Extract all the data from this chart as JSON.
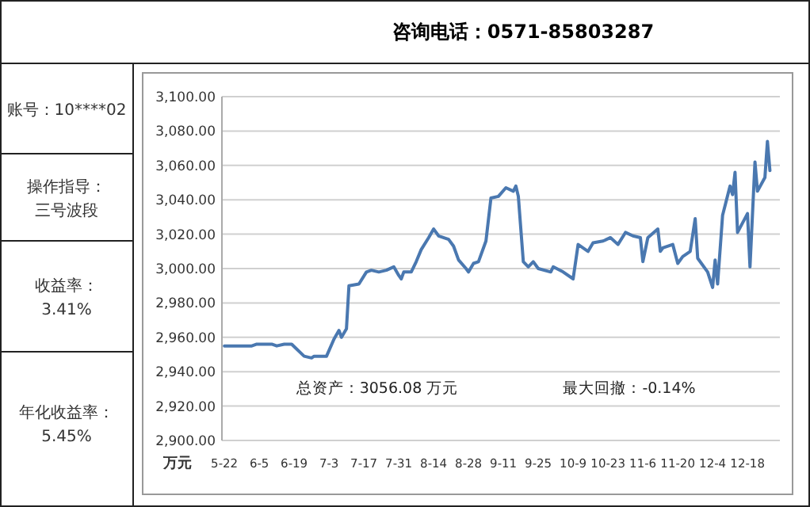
{
  "chart_data": {
    "type": "line",
    "title": "咨询电话：0571-85803287",
    "ylabel": "万元",
    "annotations": [
      "账号：10****02",
      "操作指导：",
      "三号波段",
      "收益率：",
      "3.41%",
      "年化收益率：",
      "5.45%",
      "总资产：3056.08 万元",
      "最大回撤：-0.14%"
    ],
    "xlim": [
      "--05-21",
      "--12-31"
    ],
    "xticks": [
      {
        "value": "--05-22",
        "label": "5-22"
      },
      {
        "value": "--06-05",
        "label": "6-5"
      },
      {
        "value": "--06-19",
        "label": "6-19"
      },
      {
        "value": "--07-03",
        "label": "7-3"
      },
      {
        "value": "--07-17",
        "label": "7-17"
      },
      {
        "value": "--07-31",
        "label": "7-31"
      },
      {
        "value": "--08-14",
        "label": "8-14"
      },
      {
        "value": "--08-28",
        "label": "8-28"
      },
      {
        "value": "--09-11",
        "label": "9-11"
      },
      {
        "value": "--09-25",
        "label": "9-25"
      },
      {
        "value": "--10-09",
        "label": "10-9"
      },
      {
        "value": "--10-23",
        "label": "10-23"
      },
      {
        "value": "--11-06",
        "label": "11-6"
      },
      {
        "value": "--11-20",
        "label": "11-20"
      },
      {
        "value": "--12-04",
        "label": "12-4"
      },
      {
        "value": "--12-18",
        "label": "12-18"
      }
    ],
    "ylim": [
      2900,
      3100
    ],
    "yticks": [
      {
        "value": 2900,
        "label": "2,900.00"
      },
      {
        "value": 2920,
        "label": "2,920.00"
      },
      {
        "value": 2940,
        "label": "2,940.00"
      },
      {
        "value": 2960,
        "label": "2,960.00"
      },
      {
        "value": 2980,
        "label": "2,980.00"
      },
      {
        "value": 3000,
        "label": "3,000.00"
      },
      {
        "value": 3020,
        "label": "3,020.00"
      },
      {
        "value": 3040,
        "label": "3,040.00"
      },
      {
        "value": 3060,
        "label": "3,060.00"
      },
      {
        "value": 3080,
        "label": "3,080.00"
      },
      {
        "value": 3100,
        "label": "3,100.00"
      }
    ],
    "grid": "y",
    "marker": "none",
    "line_style": "solid",
    "series": [
      {
        "color": "#4a78b0",
        "x": [
          "--05-22",
          "--06-02",
          "--06-04",
          "--06-10",
          "--06-12",
          "--06-15",
          "--06-18",
          "--06-23",
          "--06-26",
          "--06-27",
          "--07-02",
          "--07-05",
          "--07-07",
          "--07-08",
          "--07-10",
          "--07-11",
          "--07-15",
          "--07-18",
          "--07-20",
          "--07-23",
          "--07-26",
          "--07-29",
          "--07-31",
          "--08-01",
          "--08-02",
          "--08-05",
          "--08-07",
          "--08-09",
          "--08-12",
          "--08-14",
          "--08-16",
          "--08-20",
          "--08-22",
          "--08-24",
          "--08-27",
          "--08-28",
          "--08-30",
          "--09-01",
          "--09-04",
          "--09-06",
          "--09-09",
          "--09-12",
          "--09-15",
          "--09-16",
          "--09-17",
          "--09-19",
          "--09-21",
          "--09-23",
          "--09-25",
          "--09-30",
          "--10-01",
          "--10-05",
          "--10-09",
          "--10-11",
          "--10-15",
          "--10-17",
          "--10-21",
          "--10-24",
          "--10-27",
          "--10-30",
          "--11-02",
          "--11-05",
          "--11-06",
          "--11-08",
          "--11-12",
          "--11-13",
          "--11-14",
          "--11-18",
          "--11-20",
          "--11-22",
          "--11-25",
          "--11-27",
          "--11-28",
          "--12-02",
          "--12-04",
          "--12-05",
          "--12-06",
          "--12-08",
          "--12-11",
          "--12-12",
          "--12-13",
          "--12-14",
          "--12-18",
          "--12-19",
          "--12-21",
          "--12-22",
          "--12-25",
          "--12-26",
          "--12-27"
        ],
        "values": [
          2955,
          2955,
          2956,
          2956,
          2955,
          2956,
          2956,
          2949,
          2948,
          2949,
          2949,
          2959,
          2964,
          2960,
          2965,
          2990,
          2991,
          2998,
          2999,
          2998,
          2999,
          3001,
          2996,
          2994,
          2998,
          2998,
          3004,
          3011,
          3018,
          3023,
          3019,
          3017,
          3013,
          3005,
          3000,
          2998,
          3003,
          3004,
          3016,
          3041,
          3042,
          3047,
          3045,
          3048,
          3042,
          3004,
          3001,
          3004,
          3000,
          2998,
          3001,
          2998,
          2994,
          3014,
          3010,
          3015,
          3016,
          3018,
          3014,
          3021,
          3019,
          3018,
          3004,
          3018,
          3023,
          3010,
          3012,
          3014,
          3003,
          3007,
          3010,
          3029,
          3006,
          2998,
          2989,
          3005,
          2991,
          3031,
          3048,
          3043,
          3056,
          3021,
          3032,
          3001,
          3062,
          3045,
          3053,
          3074,
          3057
        ]
      }
    ]
  }
}
